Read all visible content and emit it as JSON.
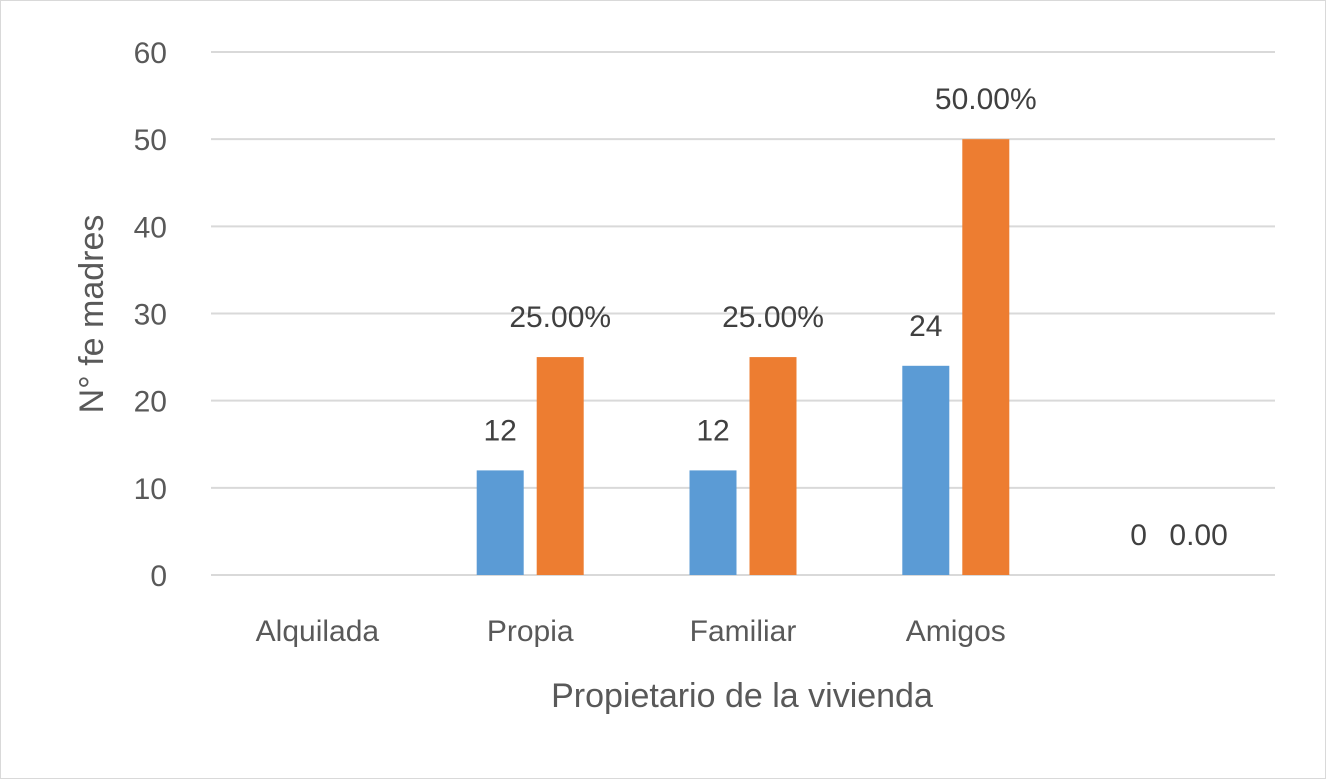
{
  "chart_data": {
    "type": "bar",
    "title": "",
    "xlabel": "Propietario de la vivienda",
    "ylabel": "N° fe madres",
    "ylim": [
      0,
      60
    ],
    "yticks": [
      0,
      10,
      20,
      30,
      40,
      50,
      60
    ],
    "ytick_labels": [
      "0",
      "10",
      "20",
      "30",
      "40",
      "50",
      "60"
    ],
    "grid": true,
    "legend": "none",
    "categories": [
      "Alquilada",
      "Propia",
      "Familiar",
      "Amigos",
      ""
    ],
    "series": [
      {
        "color": "#5b9bd5",
        "values": [
          null,
          12,
          12,
          24,
          0
        ],
        "labels": [
          "",
          "12",
          "12",
          "24",
          "0"
        ]
      },
      {
        "color": "#ed7d31",
        "values": [
          null,
          25,
          25,
          50,
          0
        ],
        "labels": [
          "",
          "25.00%",
          "25.00%",
          "50.00%",
          "0.00"
        ]
      }
    ]
  }
}
